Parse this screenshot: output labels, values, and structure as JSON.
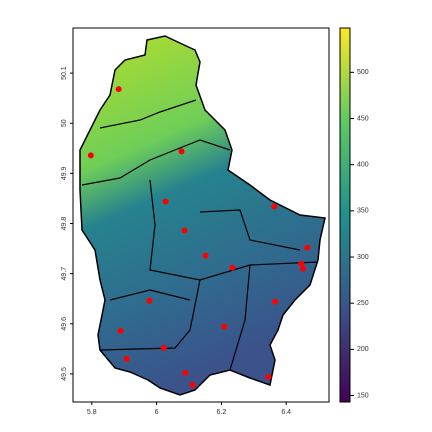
{
  "chart_data": {
    "type": "scatter",
    "x": [
      5.883,
      5.797,
      6.077,
      6.028,
      6.086,
      6.363,
      6.465,
      6.151,
      6.234,
      6.446,
      6.452,
      5.978,
      6.366,
      6.209,
      5.889,
      6.022,
      5.908,
      6.089,
      6.111,
      6.345
    ],
    "y": [
      50.068,
      49.936,
      49.944,
      49.844,
      49.786,
      49.834,
      49.752,
      49.736,
      49.712,
      49.72,
      49.71,
      49.646,
      49.644,
      49.594,
      49.586,
      49.552,
      49.53,
      49.502,
      49.478,
      49.494
    ],
    "color": "#ff0000",
    "xlim": [
      5.742,
      6.532
    ],
    "ylim": [
      49.444,
      50.19
    ],
    "xticks": [
      5.8,
      6,
      6.2,
      6.4
    ],
    "yticks": [
      49.5,
      49.6,
      49.7,
      49.8,
      49.9,
      50,
      50.1
    ],
    "colorbar": {
      "lim": [
        143,
        548
      ],
      "ticks": [
        150,
        200,
        250,
        300,
        350,
        400,
        450,
        500
      ],
      "colors": [
        "#440154",
        "#3b528b",
        "#21908c",
        "#5dc963",
        "#fde725"
      ]
    }
  }
}
